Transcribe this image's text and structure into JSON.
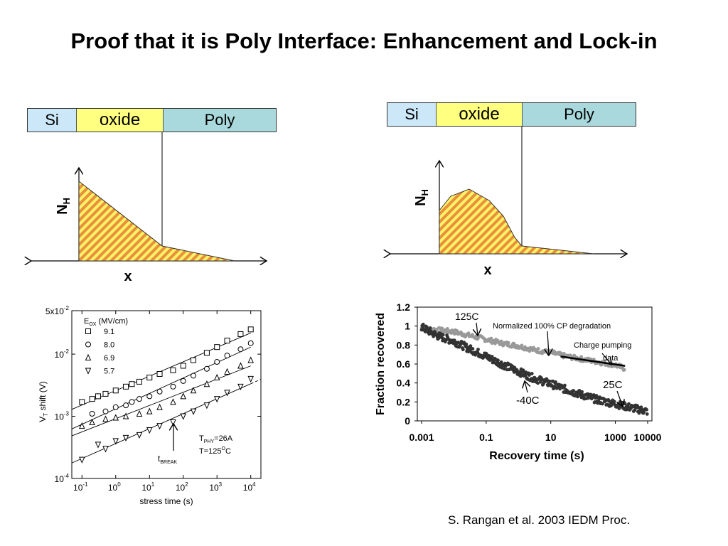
{
  "title": "Proof that it is Poly Interface: Enhancement and Lock-in",
  "band_left": {
    "si": "Si",
    "oxide": "oxide",
    "poly": "Poly"
  },
  "band_right": {
    "si": "Si",
    "oxide": "oxide",
    "poly": "Poly"
  },
  "diagram_left": {
    "ylabel": "N",
    "ylabel_sub": "H",
    "xlabel": "x"
  },
  "diagram_right": {
    "ylabel": "N",
    "ylabel_sub": "H",
    "xlabel": "x"
  },
  "hatch_colors": [
    "#e8903a",
    "#fff266"
  ],
  "citation": "S. Rangan et al. 2003 IEDM Proc.",
  "chart_data": [
    {
      "type": "scatter",
      "xlabel": "stress time (s)",
      "ylabel": "V_T shift (V)",
      "xscale": "log",
      "yscale": "log",
      "xlim": [
        0.05,
        20000
      ],
      "ylim": [
        0.0001,
        0.05
      ],
      "x_ticks": [
        "10^-1",
        "10^0",
        "10^1",
        "10^2",
        "10^3",
        "10^4"
      ],
      "y_ticks": [
        "10^-4",
        "10^-3",
        "10^-2",
        "5x10^-2"
      ],
      "legend_title": "E_OX (MV/cm)",
      "series": [
        {
          "name": "9.1",
          "marker": "square",
          "x": [
            0.1,
            0.2,
            0.3,
            0.5,
            1,
            2,
            3,
            5,
            10,
            20,
            50,
            100,
            200,
            500,
            1000,
            2000,
            5000,
            10000
          ],
          "y": [
            0.0017,
            0.0019,
            0.0021,
            0.0023,
            0.0026,
            0.003,
            0.0033,
            0.0036,
            0.0042,
            0.0048,
            0.0055,
            0.0065,
            0.008,
            0.0105,
            0.013,
            0.0165,
            0.021,
            0.025
          ]
        },
        {
          "name": "8.0",
          "marker": "circle",
          "x": [
            0.2,
            0.5,
            1,
            2,
            3,
            5,
            10,
            20,
            50,
            100,
            200,
            500,
            1000,
            2000,
            5000,
            10000
          ],
          "y": [
            0.0011,
            0.0012,
            0.0014,
            0.0015,
            0.0017,
            0.0019,
            0.0021,
            0.0025,
            0.003,
            0.0037,
            0.0045,
            0.0058,
            0.0075,
            0.0095,
            0.012,
            0.015
          ]
        },
        {
          "name": "6.9",
          "marker": "triangle-up",
          "x": [
            0.1,
            0.2,
            0.5,
            1,
            2,
            5,
            10,
            20,
            50,
            100,
            200,
            500,
            1000,
            2000,
            5000,
            10000
          ],
          "y": [
            0.0007,
            0.0008,
            0.0009,
            0.00095,
            0.001,
            0.0011,
            0.0012,
            0.0014,
            0.0017,
            0.0021,
            0.0026,
            0.0033,
            0.0042,
            0.0052,
            0.0065,
            0.008
          ]
        },
        {
          "name": "5.7",
          "marker": "triangle-down",
          "x": [
            0.1,
            0.3,
            0.5,
            1,
            2,
            5,
            10,
            20,
            50,
            100,
            200,
            500,
            1000,
            2000,
            5000,
            10000
          ],
          "y": [
            0.0002,
            0.00035,
            0.0003,
            0.0004,
            0.00045,
            0.0005,
            0.0006,
            0.0007,
            0.0008,
            0.001,
            0.0012,
            0.0015,
            0.0019,
            0.0024,
            0.003,
            0.004
          ]
        }
      ],
      "annotations": {
        "break_label": "t",
        "break_sub": "BREAK",
        "break_x": 50,
        "tphy_label": "T",
        "tphy_sub": "PHY",
        "tphy_value": "=26A",
        "temp_label": "T=125",
        "temp_sup": "O",
        "temp_unit": "C"
      }
    },
    {
      "type": "scatter",
      "xlabel": "Recovery time (s)",
      "ylabel": "Fraction recovered",
      "xscale": "log",
      "xlim": [
        0.001,
        10000
      ],
      "ylim": [
        0,
        1.2
      ],
      "x_ticks": [
        "0.001",
        "0.1",
        "10",
        "1000",
        "10000"
      ],
      "y_ticks": [
        "0",
        "0.2",
        "0.4",
        "0.6",
        "0.8",
        "1",
        "1.2"
      ],
      "series": [
        {
          "name": "125C",
          "color": "#999999",
          "x": [
            0.001,
            0.003,
            0.01,
            0.03,
            0.1,
            0.3,
            1,
            3,
            10,
            30,
            100,
            300,
            1000,
            2000
          ],
          "y": [
            0.98,
            0.96,
            0.94,
            0.9,
            0.86,
            0.82,
            0.79,
            0.75,
            0.72,
            0.68,
            0.65,
            0.62,
            0.59,
            0.55
          ]
        },
        {
          "name": "-40C / 25C",
          "color": "#333333",
          "x": [
            0.001,
            0.003,
            0.01,
            0.03,
            0.1,
            0.3,
            1,
            3,
            10,
            30,
            100,
            300,
            1000,
            3000,
            10000
          ],
          "y": [
            0.99,
            0.9,
            0.84,
            0.76,
            0.68,
            0.6,
            0.52,
            0.45,
            0.39,
            0.33,
            0.27,
            0.22,
            0.18,
            0.14,
            0.1
          ]
        },
        {
          "name": "Charge pumping data",
          "color": "#000000",
          "x": [
            20,
            2000
          ],
          "y": [
            0.68,
            0.58
          ]
        }
      ],
      "annotations": {
        "label_125": "125C",
        "label_cp_norm": "Normalized 100% CP degradation",
        "label_cp_1": "Charge pumping",
        "label_cp_2": "data",
        "label_25": "25C",
        "label_m40": "-40C"
      }
    }
  ]
}
